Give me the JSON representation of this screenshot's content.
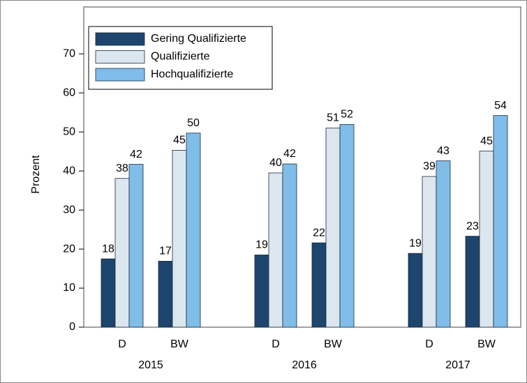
{
  "chart_data": {
    "type": "bar",
    "y_label": "Prozent",
    "groups": [
      "2015",
      "2016",
      "2017"
    ],
    "categories": [
      "D",
      "BW",
      "D",
      "BW",
      "D",
      "BW"
    ],
    "series": [
      {
        "name": "Gering Qualifizierte",
        "color": "#1d456d",
        "values": [
          17.5,
          16.9,
          18.5,
          21.6,
          18.9,
          23.3
        ],
        "value_labels": [
          "18",
          "17",
          "19",
          "22",
          "19",
          "23"
        ]
      },
      {
        "name": "Qualifizierte",
        "color": "#dce6ee",
        "values": [
          38.1,
          45.3,
          39.5,
          51.0,
          38.6,
          45.1
        ],
        "value_labels": [
          "38",
          "45",
          "40",
          "51",
          "39",
          "45"
        ]
      },
      {
        "name": "Hochqualifizierte",
        "color": "#80bde9",
        "values": [
          41.7,
          49.7,
          41.8,
          51.9,
          42.6,
          54.2
        ],
        "value_labels": [
          "42",
          "50",
          "42",
          "52",
          "43",
          "54"
        ]
      }
    ],
    "ylim": [
      0,
      82
    ],
    "yticks": [
      0,
      10,
      20,
      30,
      40,
      50,
      60,
      70
    ],
    "legend": "upper left"
  }
}
